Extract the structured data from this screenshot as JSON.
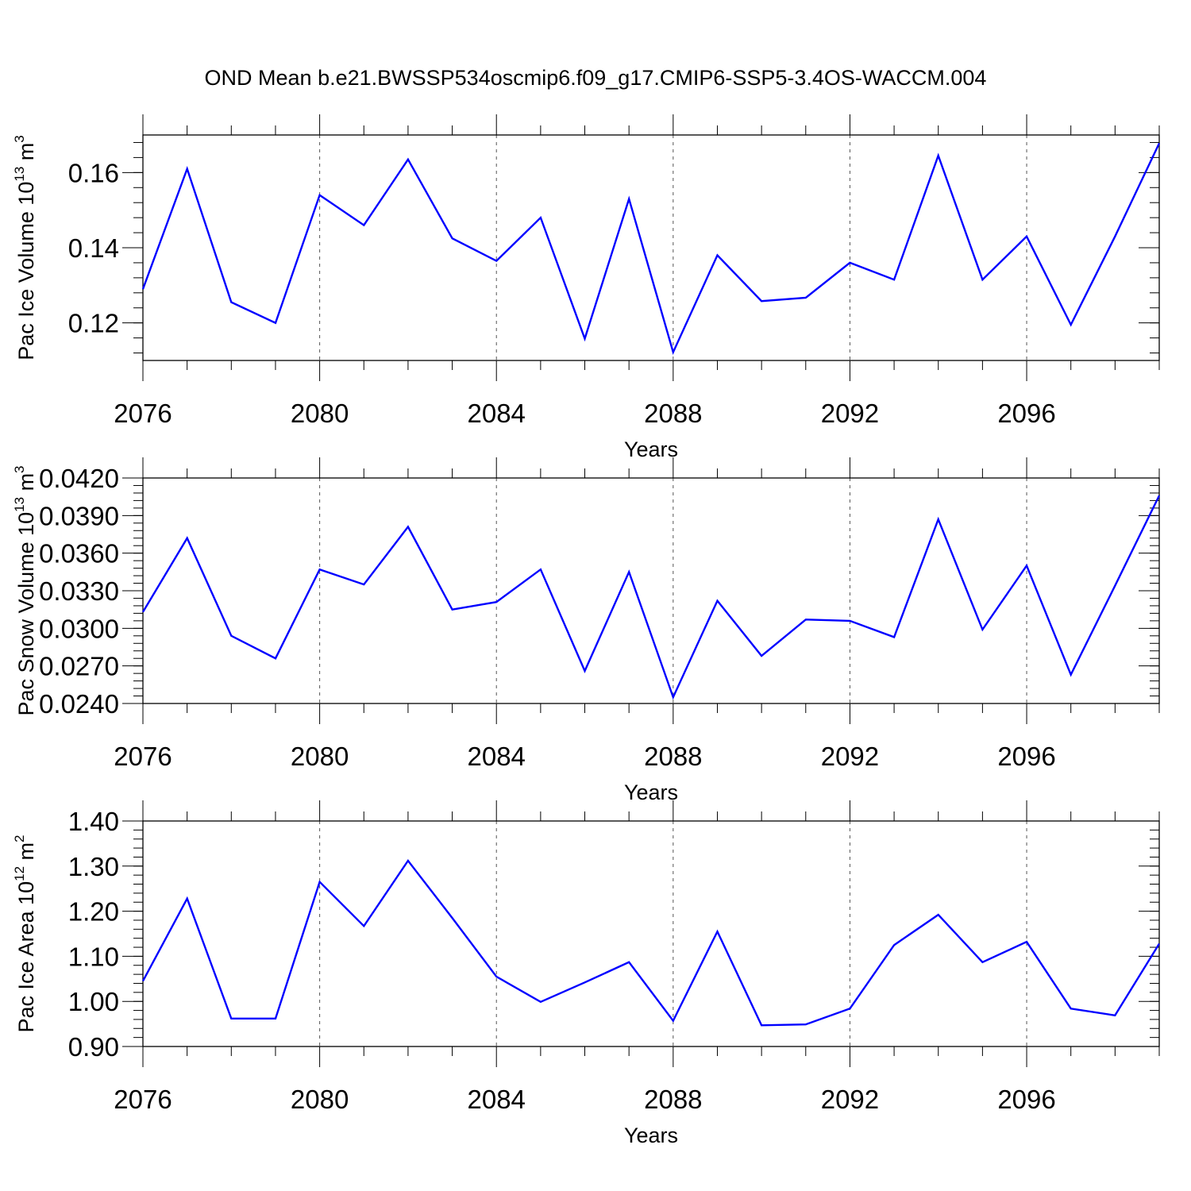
{
  "title": "OND Mean b.e21.BWSSP534oscmip6.f09_g17.CMIP6-SSP5-3.4OS-WACCM.004",
  "chart_data": [
    {
      "type": "line",
      "xlabel": "Years",
      "ylabel": {
        "text": "Pac Ice Volume 10",
        "exponent": "13",
        "unit": "m",
        "unit_exponent": "3"
      },
      "x": [
        2076,
        2077,
        2078,
        2079,
        2080,
        2081,
        2082,
        2083,
        2084,
        2085,
        2086,
        2087,
        2088,
        2089,
        2090,
        2091,
        2092,
        2093,
        2094,
        2095,
        2096,
        2097,
        2098,
        2099
      ],
      "series": [
        {
          "name": "Pac Ice Volume",
          "color": "#0000ff",
          "values": [
            0.129,
            0.161,
            0.1255,
            0.12,
            0.154,
            0.146,
            0.1635,
            0.1425,
            0.1365,
            0.148,
            0.1158,
            0.153,
            0.1122,
            0.138,
            0.1258,
            0.1267,
            0.136,
            0.1315,
            0.1645,
            0.1315,
            0.143,
            0.1195,
            0.143,
            0.1678
          ]
        }
      ],
      "xlim": [
        2076,
        2099
      ],
      "ylim": [
        0.11,
        0.17
      ],
      "yticks": [
        0.12,
        0.14,
        0.16
      ],
      "ytick_labels": [
        "0.12",
        "0.14",
        "0.16"
      ],
      "xticks": [
        2076,
        2080,
        2084,
        2088,
        2092,
        2096
      ],
      "xtick_labels": [
        "2076",
        "2080",
        "2084",
        "2088",
        "2092",
        "2096"
      ],
      "grid": "vertical-dashed"
    },
    {
      "type": "line",
      "xlabel": "Years",
      "ylabel": {
        "text": "Pac Snow Volume 10",
        "exponent": "13",
        "unit": "m",
        "unit_exponent": "3"
      },
      "x": [
        2076,
        2077,
        2078,
        2079,
        2080,
        2081,
        2082,
        2083,
        2084,
        2085,
        2086,
        2087,
        2088,
        2089,
        2090,
        2091,
        2092,
        2093,
        2094,
        2095,
        2096,
        2097,
        2098,
        2099
      ],
      "series": [
        {
          "name": "Pac Snow Volume",
          "color": "#0000ff",
          "values": [
            0.0313,
            0.0372,
            0.0294,
            0.0276,
            0.0347,
            0.0335,
            0.0381,
            0.0315,
            0.0321,
            0.0347,
            0.0266,
            0.0345,
            0.0245,
            0.0322,
            0.0278,
            0.0307,
            0.0306,
            0.0293,
            0.0387,
            0.0299,
            0.035,
            0.0263,
            0.0334,
            0.0406
          ]
        }
      ],
      "xlim": [
        2076,
        2099
      ],
      "ylim": [
        0.024,
        0.042
      ],
      "yticks": [
        0.024,
        0.027,
        0.03,
        0.033,
        0.036,
        0.039,
        0.042
      ],
      "ytick_labels": [
        "0.0240",
        "0.0270",
        "0.0300",
        "0.0330",
        "0.0360",
        "0.0390",
        "0.0420"
      ],
      "xticks": [
        2076,
        2080,
        2084,
        2088,
        2092,
        2096
      ],
      "xtick_labels": [
        "2076",
        "2080",
        "2084",
        "2088",
        "2092",
        "2096"
      ],
      "grid": "vertical-dashed"
    },
    {
      "type": "line",
      "xlabel": "Years",
      "ylabel": {
        "text": "Pac Ice Area 10",
        "exponent": "12",
        "unit": "m",
        "unit_exponent": "2"
      },
      "x": [
        2076,
        2077,
        2078,
        2079,
        2080,
        2081,
        2082,
        2083,
        2084,
        2085,
        2086,
        2087,
        2088,
        2089,
        2090,
        2091,
        2092,
        2093,
        2094,
        2095,
        2096,
        2097,
        2098,
        2099
      ],
      "series": [
        {
          "name": "Pac Ice Area",
          "color": "#0000ff",
          "values": [
            1.045,
            1.228,
            0.962,
            0.962,
            1.265,
            1.167,
            1.312,
            1.185,
            1.055,
            0.999,
            1.042,
            1.087,
            0.957,
            1.155,
            0.947,
            0.949,
            0.984,
            1.125,
            1.192,
            1.087,
            1.132,
            0.984,
            0.969,
            1.128
          ]
        }
      ],
      "xlim": [
        2076,
        2099
      ],
      "ylim": [
        0.9,
        1.4
      ],
      "yticks": [
        0.9,
        1.0,
        1.1,
        1.2,
        1.3,
        1.4
      ],
      "ytick_labels": [
        "0.90",
        "1.00",
        "1.10",
        "1.20",
        "1.30",
        "1.40"
      ],
      "xticks": [
        2076,
        2080,
        2084,
        2088,
        2092,
        2096
      ],
      "xtick_labels": [
        "2076",
        "2080",
        "2084",
        "2088",
        "2092",
        "2096"
      ],
      "grid": "vertical-dashed"
    }
  ]
}
